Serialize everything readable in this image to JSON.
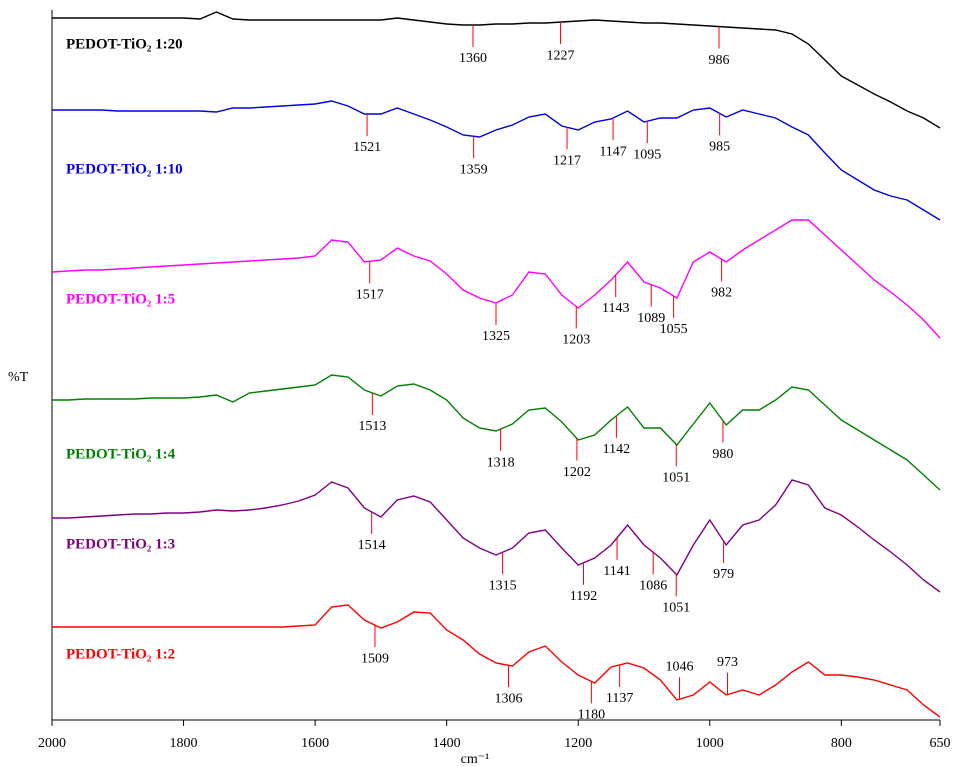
{
  "chart_data": {
    "type": "line",
    "x_label": "cm⁻¹",
    "y_label": "%T",
    "xlim": [
      2000,
      650
    ],
    "xticks": [
      2000,
      1800,
      1600,
      1400,
      1200,
      1000,
      800,
      650
    ],
    "ylim": [
      0,
      710
    ],
    "x": [
      2000,
      1975,
      1950,
      1925,
      1900,
      1875,
      1850,
      1825,
      1800,
      1775,
      1750,
      1725,
      1700,
      1675,
      1650,
      1625,
      1600,
      1575,
      1550,
      1525,
      1500,
      1475,
      1450,
      1425,
      1400,
      1375,
      1350,
      1325,
      1300,
      1275,
      1250,
      1225,
      1200,
      1175,
      1150,
      1125,
      1100,
      1075,
      1050,
      1025,
      1000,
      975,
      950,
      925,
      900,
      875,
      850,
      825,
      800,
      775,
      750,
      725,
      700,
      675,
      650
    ],
    "series": [
      {
        "name": "PEDOT-TiO₂ 1:20",
        "color": "#000000",
        "values": [
          702,
          702,
          702,
          702,
          702,
          702,
          702,
          702,
          702,
          701,
          708,
          701,
          700,
          700,
          700,
          700,
          700,
          700,
          700,
          700,
          700,
          702,
          700,
          698,
          696,
          695,
          695,
          696,
          696,
          697,
          697,
          698,
          699,
          700,
          699,
          698,
          697,
          697,
          696,
          695,
          694,
          693,
          692,
          691,
          690,
          686,
          676,
          660,
          644,
          635,
          626,
          618,
          609,
          602,
          592
        ],
        "peaks": [
          1360,
          1227,
          986
        ]
      },
      {
        "name": "PEDOT-TiO₂ 1:10",
        "color": "#0000e0",
        "values": [
          610,
          610,
          610,
          610,
          609,
          609,
          609,
          609,
          609,
          609,
          608,
          612,
          612,
          613,
          614,
          615,
          616,
          619,
          614,
          606,
          606,
          612,
          606,
          600,
          593,
          585,
          583,
          590,
          595,
          603,
          606,
          594,
          590,
          598,
          601,
          609,
          598,
          602,
          602,
          610,
          612,
          603,
          610,
          606,
          602,
          593,
          585,
          567,
          550,
          540,
          530,
          524,
          520,
          510,
          500
        ],
        "peaks": [
          1521,
          1359,
          1217,
          1147,
          1095,
          985
        ]
      },
      {
        "name": "PEDOT-TiO₂ 1:5",
        "color": "#ff00ff",
        "values": [
          448,
          449,
          450,
          450,
          451,
          452,
          453,
          454,
          455,
          456,
          457,
          458,
          459,
          460,
          461,
          462,
          464,
          480,
          478,
          458,
          460,
          472,
          464,
          459,
          446,
          430,
          422,
          417,
          425,
          448,
          446,
          425,
          412,
          425,
          440,
          458,
          438,
          432,
          422,
          458,
          468,
          458,
          470,
          480,
          490,
          500,
          500,
          485,
          470,
          455,
          440,
          428,
          415,
          400,
          382
        ],
        "peaks": [
          1517,
          1325,
          1203,
          1143,
          1089,
          1055,
          982
        ]
      },
      {
        "name": "PEDOT-TiO₂ 1:4",
        "color": "#008000",
        "values": [
          320,
          320,
          321,
          321,
          321,
          321,
          322,
          322,
          322,
          323,
          325,
          318,
          327,
          329,
          331,
          333,
          335,
          345,
          343,
          330,
          324,
          334,
          336,
          330,
          320,
          302,
          292,
          289,
          296,
          310,
          312,
          298,
          280,
          285,
          300,
          313,
          292,
          292,
          275,
          296,
          317,
          295,
          310,
          310,
          320,
          333,
          330,
          315,
          300,
          290,
          280,
          270,
          260,
          245,
          230
        ],
        "peaks": [
          1513,
          1318,
          1202,
          1142,
          1051,
          980
        ]
      },
      {
        "name": "PEDOT-TiO₂ 1:3",
        "color": "#800080",
        "values": [
          202,
          202,
          203,
          204,
          205,
          206,
          206,
          207,
          207,
          208,
          210,
          209,
          210,
          212,
          215,
          219,
          225,
          238,
          232,
          212,
          203,
          220,
          224,
          218,
          200,
          182,
          172,
          165,
          172,
          187,
          190,
          172,
          155,
          162,
          175,
          195,
          175,
          162,
          145,
          175,
          200,
          175,
          195,
          200,
          215,
          240,
          235,
          212,
          205,
          193,
          180,
          168,
          155,
          140,
          128
        ],
        "peaks": [
          1514,
          1315,
          1192,
          1141,
          1086,
          1051,
          979
        ]
      },
      {
        "name": "PEDOT-TiO₂ 1:2",
        "color": "#ff0000",
        "values": [
          93,
          93,
          93,
          93,
          93,
          93,
          93,
          93,
          93,
          93,
          93,
          93,
          93,
          93,
          93,
          94,
          95,
          113,
          115,
          100,
          92,
          98,
          108,
          107,
          90,
          80,
          66,
          57,
          54,
          68,
          74,
          58,
          45,
          37,
          53,
          57,
          52,
          40,
          20,
          25,
          38,
          25,
          30,
          25,
          35,
          48,
          58,
          45,
          45,
          43,
          40,
          35,
          30,
          15,
          3
        ],
        "peaks": [
          1509,
          1306,
          1180,
          1137,
          1046,
          973
        ]
      }
    ]
  }
}
